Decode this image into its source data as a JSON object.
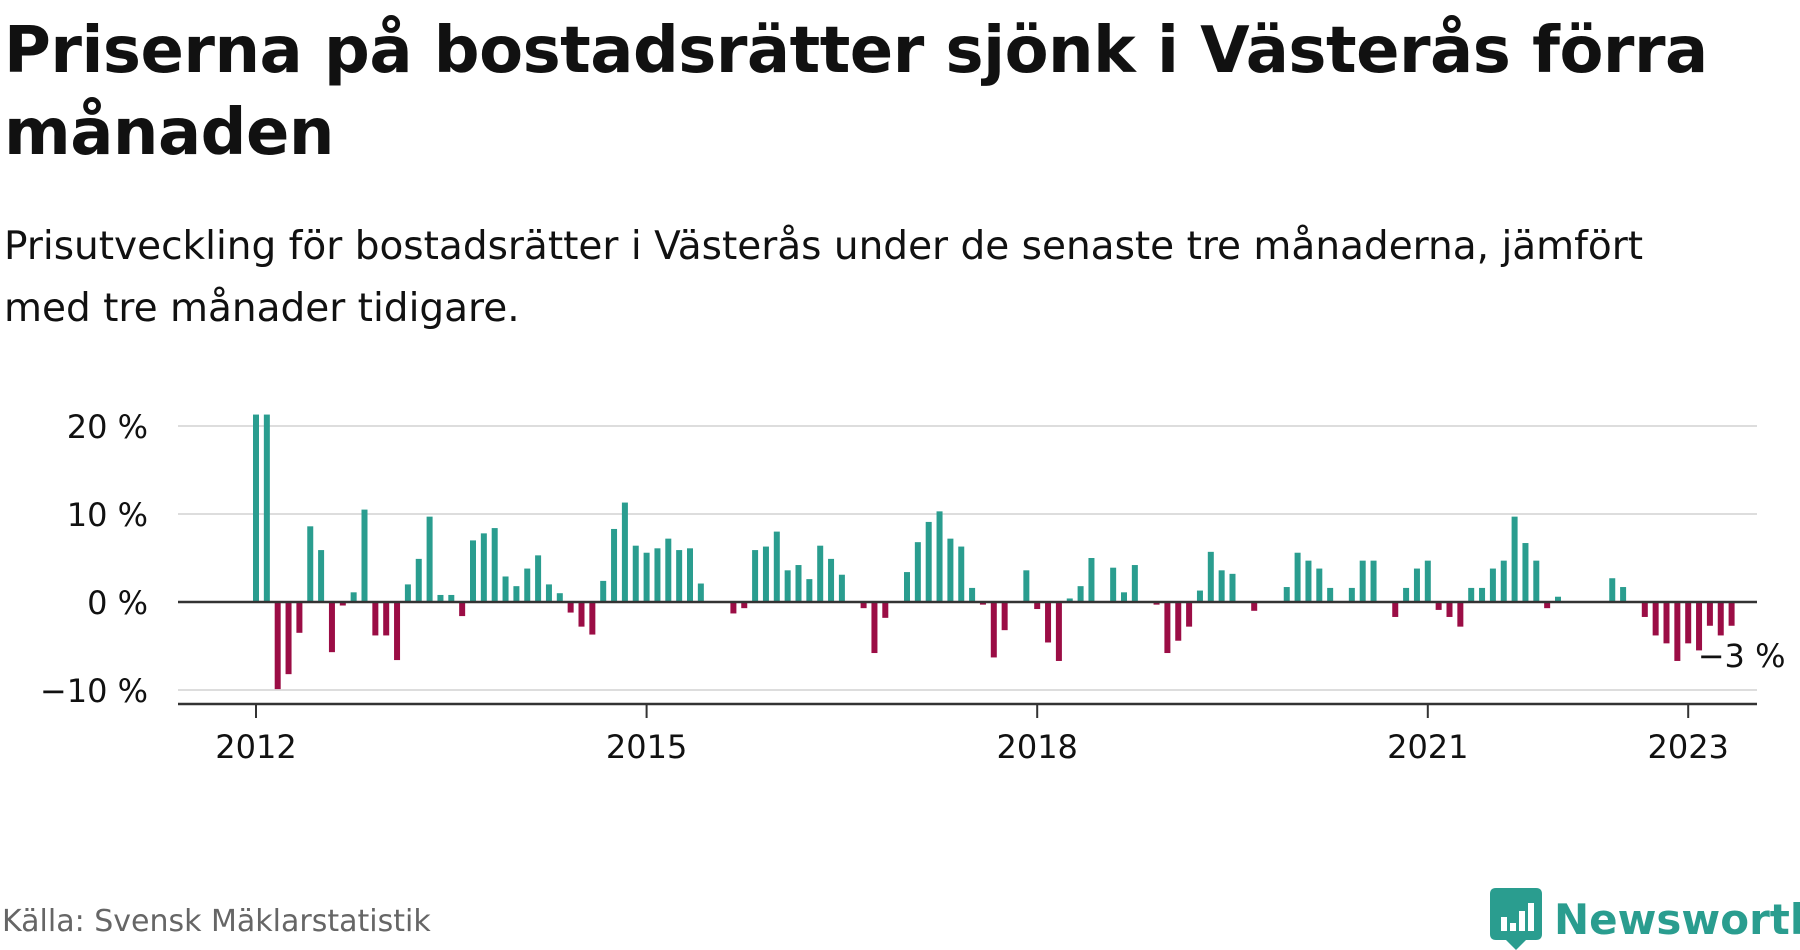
{
  "title": "Priserna på bostadsrätter sjönk i Västerås förra månaden",
  "subtitle": "Prisutveckling för bostadsrätter i Västerås under de senaste tre månaderna, jämfört med tre månader tidigare.",
  "source": "Källa: Svensk Mäklarstatistik",
  "brand": "Newsworthy",
  "colors": {
    "positive": "#2a9d8f",
    "negative": "#9b0d45",
    "grid": "#dddddd",
    "axis": "#333333",
    "text": "#111111",
    "muted": "#666666"
  },
  "chart_data": {
    "type": "bar",
    "title": "Priserna på bostadsrätter sjönk i Västerås förra månaden",
    "subtitle": "Prisutveckling för bostadsrätter i Västerås under de senaste tre månaderna, jämfört med tre månader tidigare.",
    "xlabel": "",
    "ylabel": "",
    "unit": "%",
    "start": "2012-01",
    "frequency": "monthly",
    "ylim": [
      -10,
      20
    ],
    "yticks": [
      -10,
      0,
      10,
      20
    ],
    "ytick_labels": [
      "−10 %",
      "0 %",
      "10 %",
      "20 %"
    ],
    "xticks": [
      "2012",
      "2015",
      "2018",
      "2021",
      "2023"
    ],
    "grid": true,
    "legend": "none",
    "last_label": "−3 %",
    "values": [
      21.3,
      21.3,
      -9.9,
      -8.2,
      -3.5,
      8.6,
      5.9,
      -5.7,
      -0.4,
      1.1,
      10.5,
      -3.8,
      -3.8,
      -6.6,
      2.0,
      4.9,
      9.7,
      0.8,
      0.8,
      -1.6,
      7.0,
      7.8,
      8.4,
      2.9,
      1.8,
      3.8,
      5.3,
      2.0,
      1.0,
      -1.2,
      -2.8,
      -3.7,
      2.4,
      8.3,
      11.3,
      6.4,
      5.6,
      6.1,
      7.2,
      5.9,
      6.1,
      2.1,
      0.0,
      0.0,
      -1.3,
      -0.7,
      5.9,
      6.3,
      8.0,
      3.6,
      4.2,
      2.6,
      6.4,
      4.9,
      3.1,
      0.0,
      -0.7,
      -5.8,
      -1.8,
      0.0,
      3.4,
      6.8,
      9.1,
      10.3,
      7.2,
      6.3,
      1.6,
      -0.3,
      -6.3,
      -3.2,
      0.0,
      3.6,
      -0.8,
      -4.6,
      -6.7,
      0.4,
      1.8,
      5.0,
      0.0,
      3.9,
      1.1,
      4.2,
      0.0,
      -0.3,
      -5.8,
      -4.4,
      -2.8,
      1.3,
      5.7,
      3.6,
      3.2,
      0.0,
      -1.0,
      0.0,
      0.0,
      1.7,
      5.6,
      4.7,
      3.8,
      1.6,
      0.0,
      1.6,
      4.7,
      4.7,
      0.0,
      -1.7,
      1.6,
      3.8,
      4.7,
      -0.9,
      -1.7,
      -2.8,
      1.6,
      1.6,
      3.8,
      4.7,
      9.7,
      6.7,
      4.7,
      -0.7,
      0.6,
      0.0,
      0.0,
      0.0,
      0.0,
      2.7,
      1.7,
      0.0,
      -1.7,
      -3.8,
      -4.7,
      -6.7,
      -4.7,
      -5.5,
      -2.7,
      -3.8,
      -2.7
    ]
  }
}
